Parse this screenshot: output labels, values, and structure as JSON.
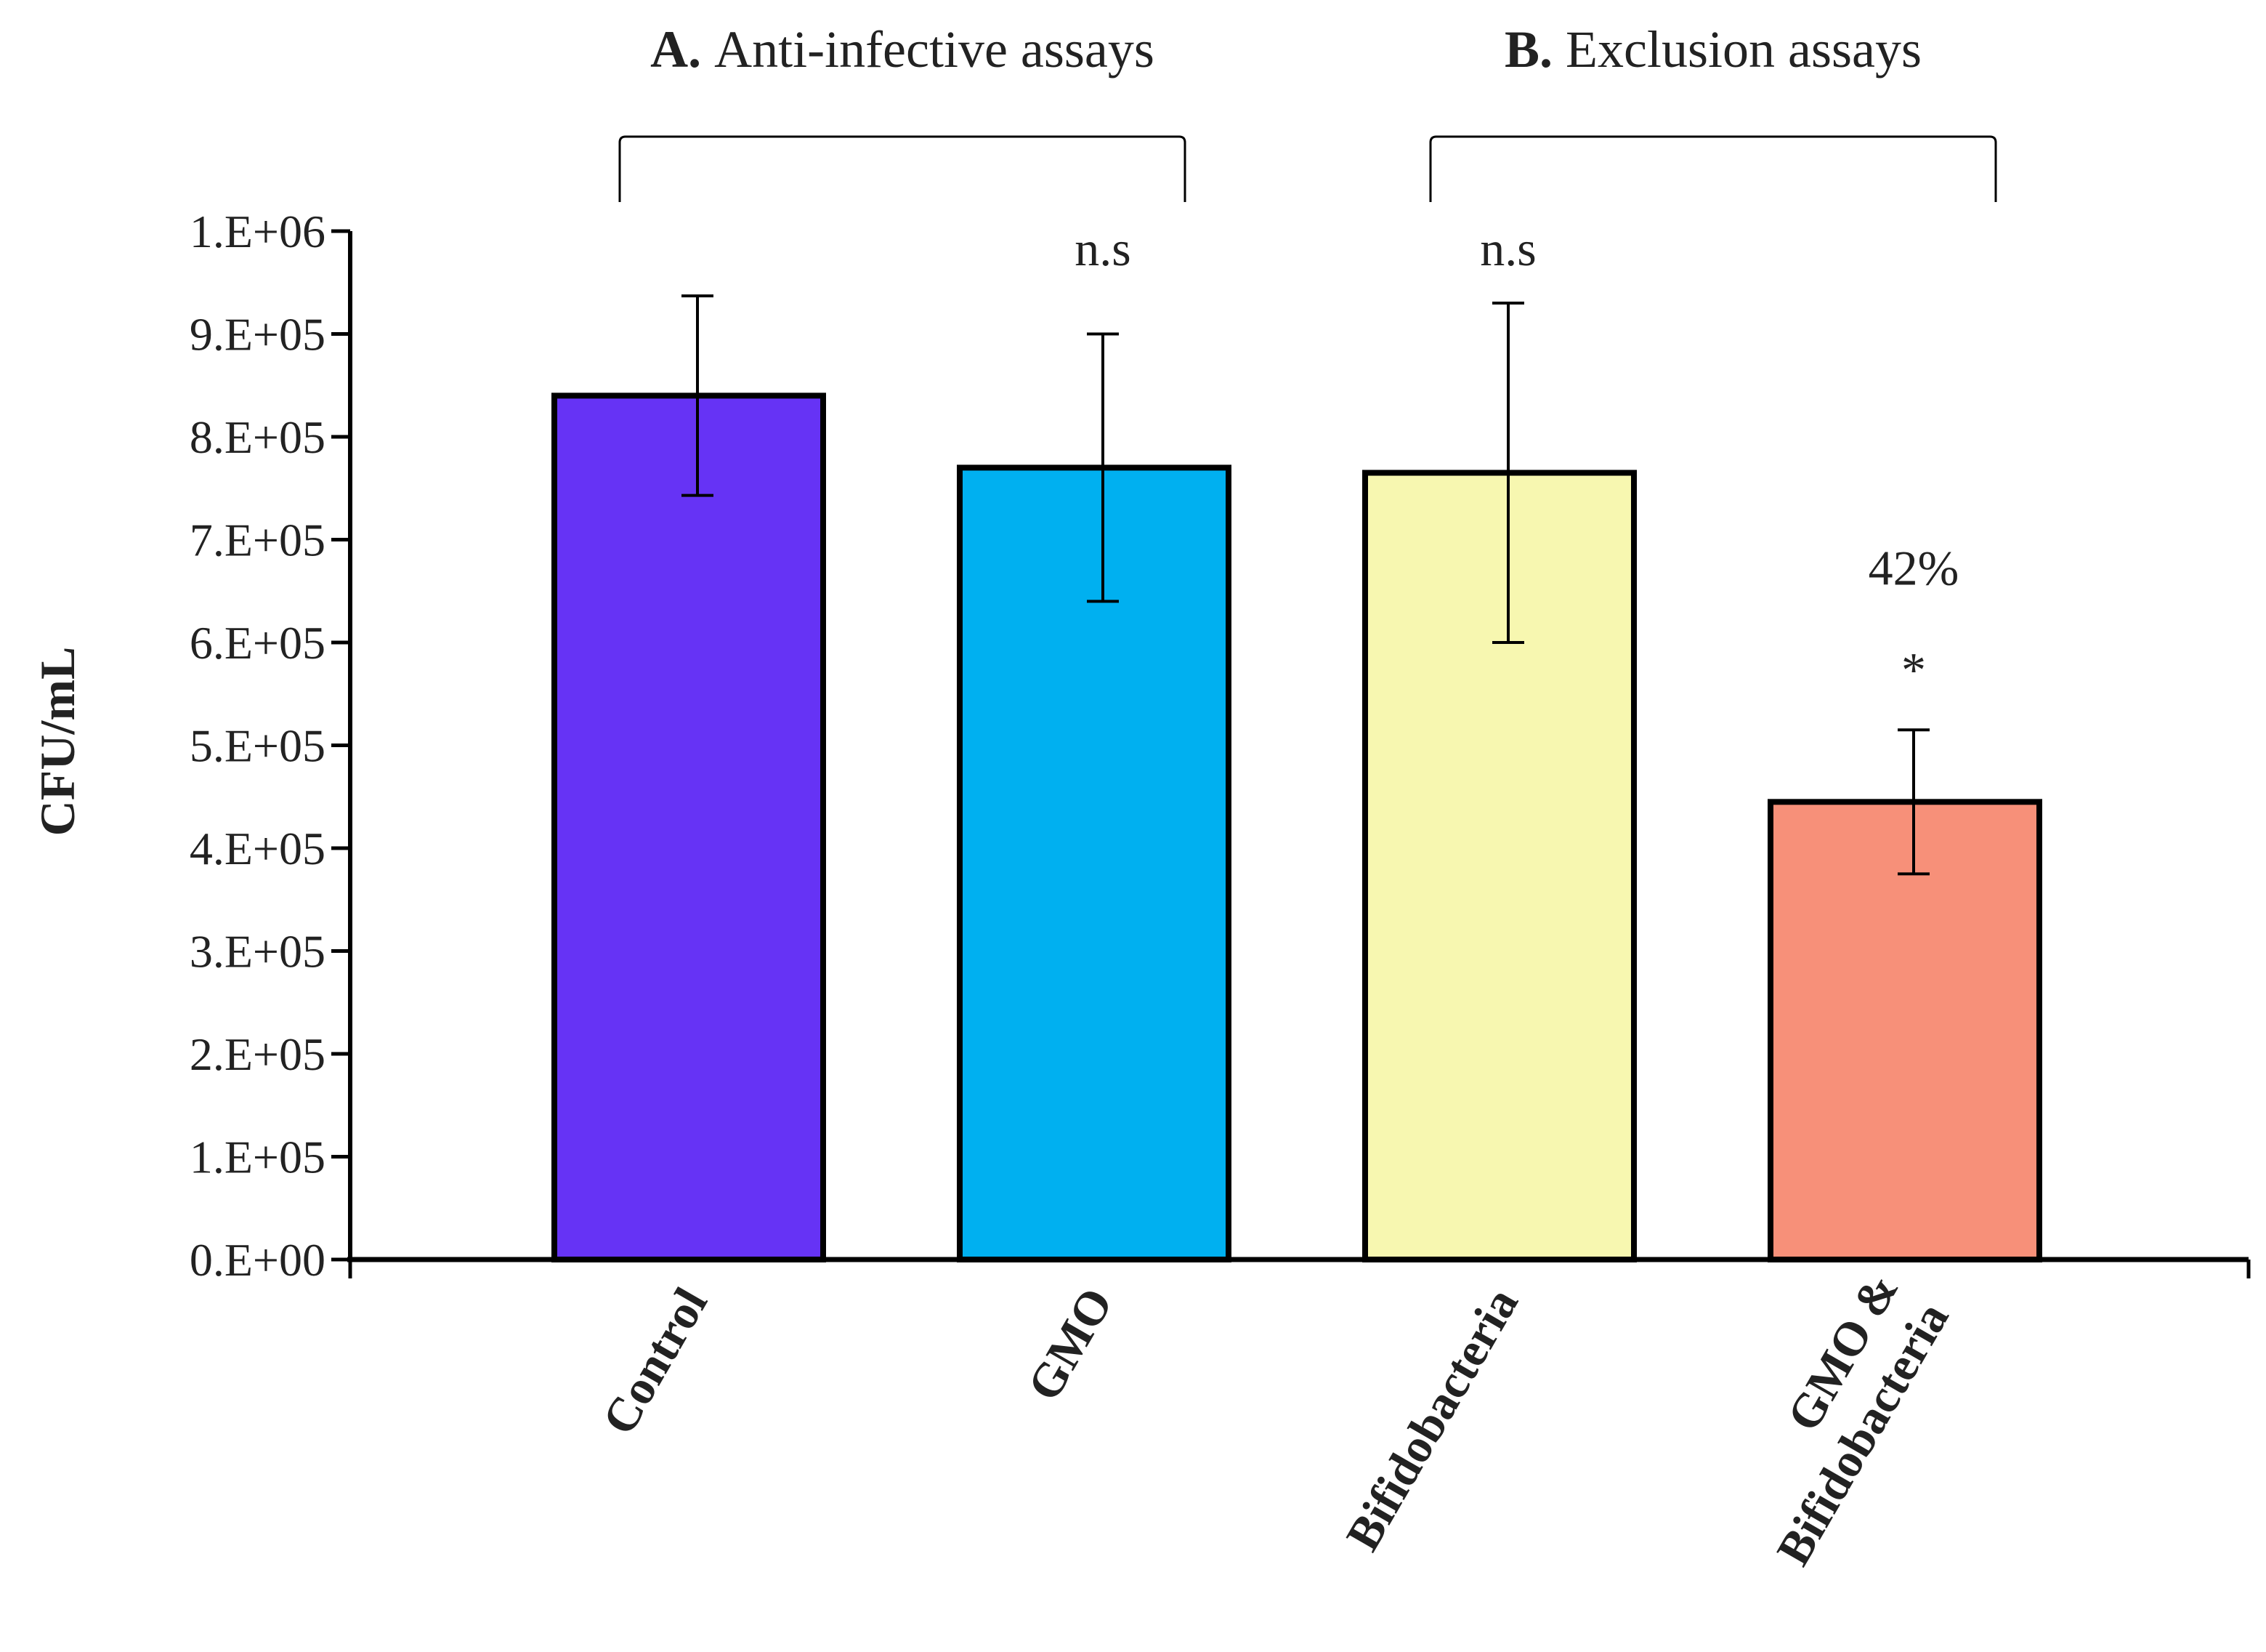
{
  "chart_data": {
    "type": "bar",
    "title": "",
    "xlabel": "",
    "ylabel": "CFU/mL",
    "ylim": [
      0,
      1000000
    ],
    "y_ticks": [
      0,
      100000,
      200000,
      300000,
      400000,
      500000,
      600000,
      700000,
      800000,
      900000,
      1000000
    ],
    "y_tick_labels": [
      "0.E+00",
      "1.E+05",
      "2.E+05",
      "3.E+05",
      "4.E+05",
      "5.E+05",
      "6.E+05",
      "7.E+05",
      "8.E+05",
      "9.E+05",
      "1.E+06"
    ],
    "categories": [
      [
        "Control"
      ],
      [
        "GMO"
      ],
      [
        "Bifidobacteria"
      ],
      [
        "GMO &",
        "Bifidobacteria"
      ]
    ],
    "values": [
      840000,
      770000,
      765000,
      445000
    ],
    "errors": [
      97000,
      130000,
      165000,
      70000
    ],
    "colors": [
      "#6633f5",
      "#00b0f0",
      "#f7f7b0",
      "#f79079"
    ],
    "annotations": [
      {
        "category_index": 1,
        "lines": [
          "n.s"
        ]
      },
      {
        "category_index": 2,
        "lines": [
          "n.s"
        ]
      },
      {
        "category_index": 3,
        "lines": [
          "42%",
          "*"
        ]
      }
    ],
    "groups": [
      {
        "prefix": "A.",
        "label": "Anti-infective assays",
        "from": 0,
        "to": 1
      },
      {
        "prefix": "B.",
        "label": "Exclusion assays",
        "from": 2,
        "to": 3
      }
    ]
  }
}
